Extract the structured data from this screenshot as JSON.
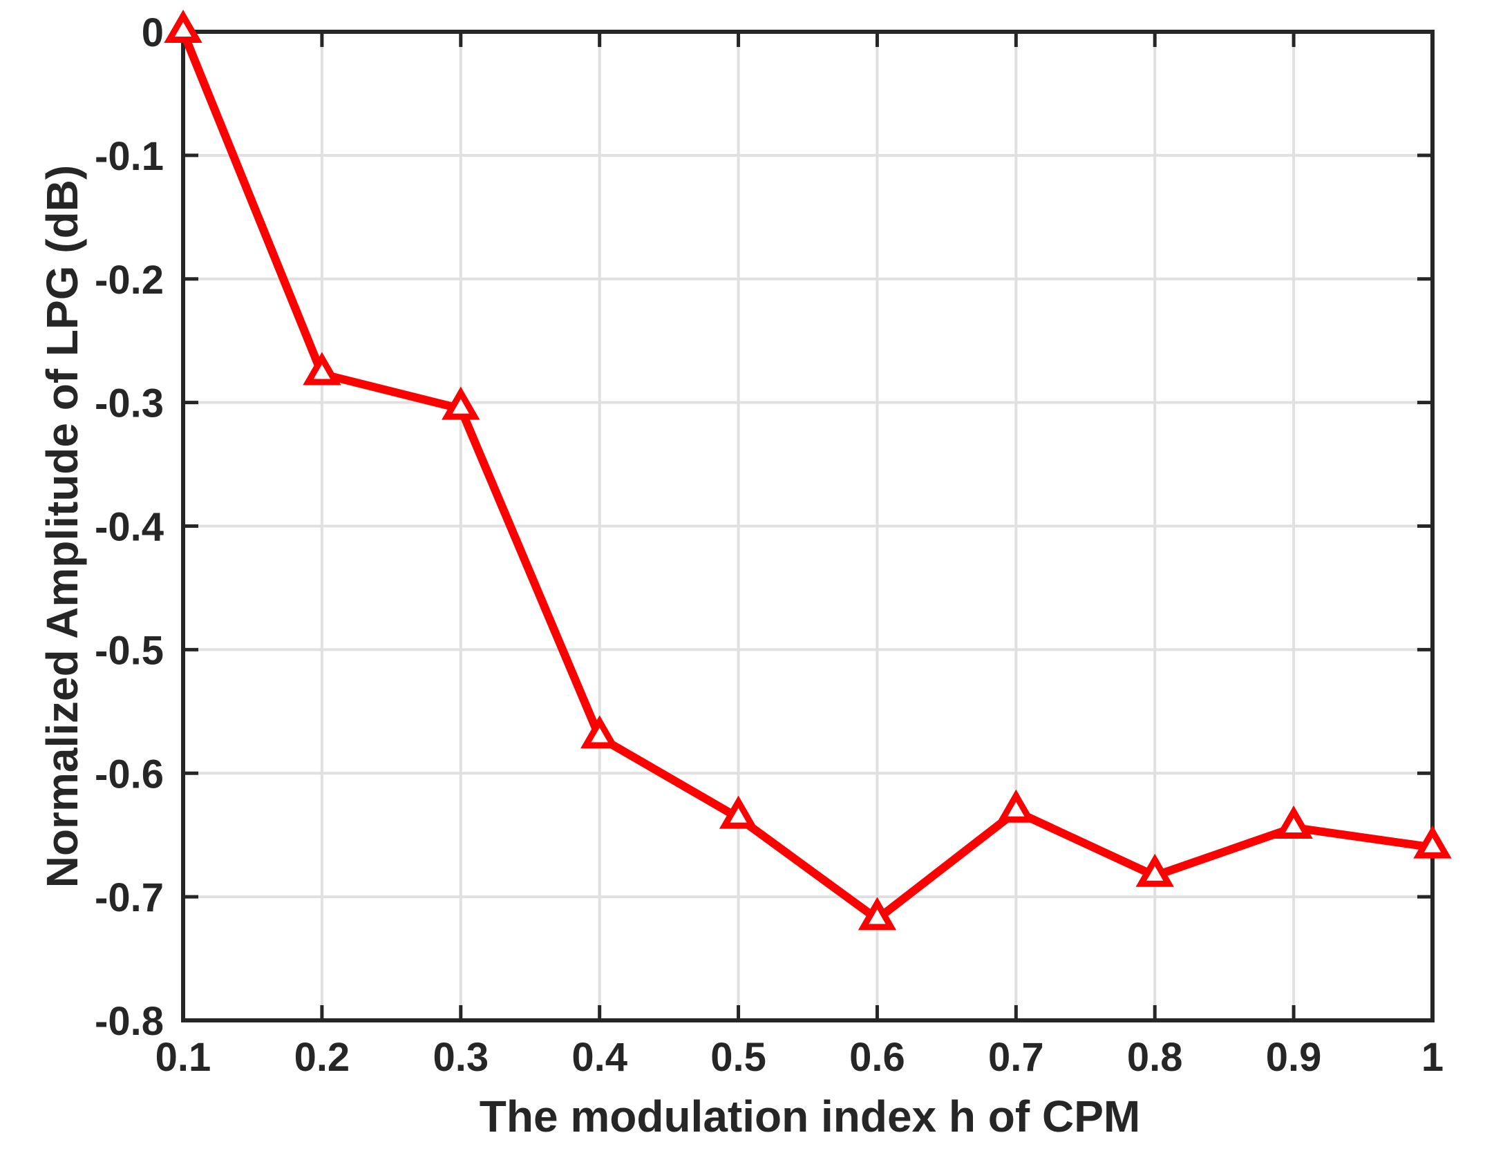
{
  "chart_data": {
    "type": "line",
    "title": "",
    "xlabel": "The modulation index h of CPM",
    "ylabel": "Normalized Amplitude of LPG (dB)",
    "x": [
      0.1,
      0.2,
      0.3,
      0.4,
      0.5,
      0.6,
      0.7,
      0.8,
      0.9,
      1.0
    ],
    "series": [
      {
        "name": "Normalized amplitude of LPG",
        "values": [
          0,
          -0.277,
          -0.305,
          -0.571,
          -0.636,
          -0.718,
          -0.631,
          -0.683,
          -0.644,
          -0.66
        ],
        "color": "#ff0000",
        "marker": "triangle-up",
        "marker_fill": "#ffffff"
      }
    ],
    "xlim": [
      0.1,
      1
    ],
    "ylim": [
      -0.8,
      0
    ],
    "xticks": [
      0.1,
      0.2,
      0.3,
      0.4,
      0.5,
      0.6,
      0.7,
      0.8,
      0.9,
      1
    ],
    "xtick_labels": [
      "0.1",
      "0.2",
      "0.3",
      "0.4",
      "0.5",
      "0.6",
      "0.7",
      "0.8",
      "0.9",
      "1"
    ],
    "yticks": [
      0,
      -0.1,
      -0.2,
      -0.3,
      -0.4,
      -0.5,
      -0.6,
      -0.7,
      -0.8
    ],
    "ytick_labels": [
      "0",
      "-0.1",
      "-0.2",
      "-0.3",
      "-0.4",
      "-0.5",
      "-0.6",
      "-0.7",
      "-0.8"
    ],
    "grid": true,
    "legend_position": "none",
    "colors": {
      "line": "#ff0000",
      "grid": "#e0e0e0",
      "axis": "#262626",
      "text": "#262626",
      "background": "#ffffff"
    }
  }
}
